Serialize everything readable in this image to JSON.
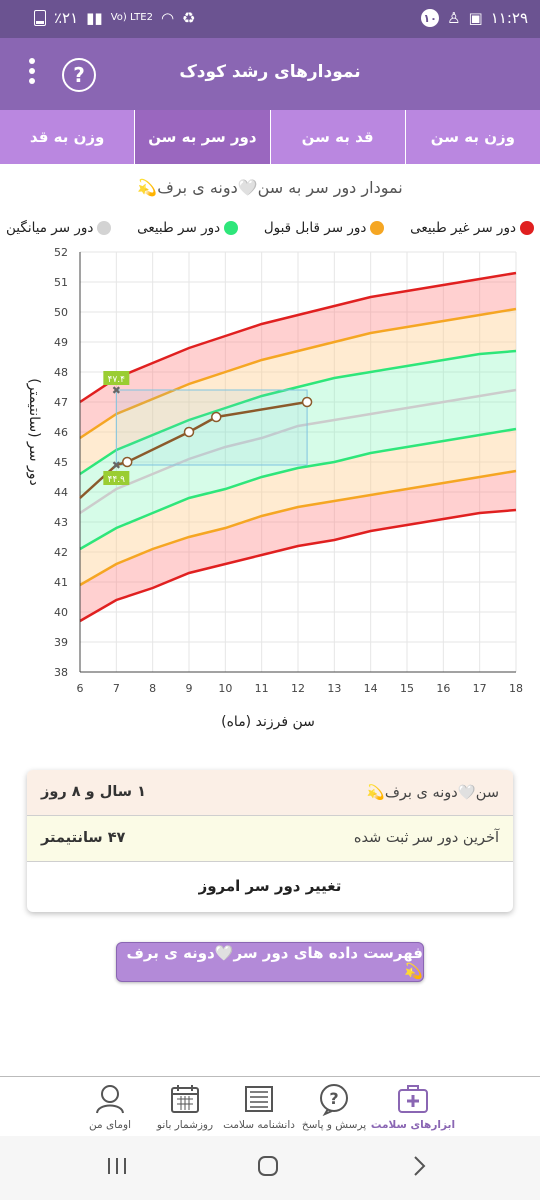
{
  "status_bar": {
    "battery": "٪۲۱",
    "network": "Vo) LTE2",
    "time": "۱۱:۲۹",
    "notif_count": "۱۰"
  },
  "app": {
    "title": "نمودارهای رشد کودک",
    "help_label": "?"
  },
  "tabs": [
    {
      "label": "وزن به سن",
      "active": false
    },
    {
      "label": "قد به سن",
      "active": false
    },
    {
      "label": "دور سر به سن",
      "active": true
    },
    {
      "label": "وزن به قد",
      "active": false
    }
  ],
  "chart_header": {
    "title": "نمودار دور سر به سن🤍دونه ی برف💫"
  },
  "legend": [
    {
      "label": "دور سر غیر طبیعی",
      "color": "#e02020"
    },
    {
      "label": "دور سر قابل قبول",
      "color": "#f5a623"
    },
    {
      "label": "دور سر طبیعی",
      "color": "#2ee67a"
    },
    {
      "label": "دور سر میانگین",
      "color": "#d3d3d3"
    }
  ],
  "chart_data": {
    "type": "line",
    "xlabel": "سن فرزند (ماه)",
    "ylabel": "دور سر (سانتیمتر)",
    "xlim": [
      6,
      18
    ],
    "ylim": [
      38,
      52
    ],
    "x_ticks": [
      "6",
      "7",
      "8",
      "9",
      "10",
      "11",
      "12",
      "13",
      "14",
      "15",
      "16",
      "17",
      "18"
    ],
    "y_ticks": [
      "38",
      "39",
      "40",
      "41",
      "42",
      "43",
      "44",
      "45",
      "46",
      "47",
      "48",
      "49",
      "50",
      "51",
      "52"
    ],
    "reference_x": [
      6,
      7,
      8,
      9,
      10,
      11,
      12,
      13,
      14,
      15,
      16,
      17,
      18
    ],
    "reference_curves": [
      {
        "name": "abnormal_high",
        "color": "#e02020",
        "values": [
          47.0,
          47.8,
          48.3,
          48.8,
          49.2,
          49.6,
          49.9,
          50.2,
          50.5,
          50.7,
          50.9,
          51.1,
          51.3
        ]
      },
      {
        "name": "acceptable_high",
        "color": "#f5a623",
        "values": [
          45.8,
          46.6,
          47.1,
          47.6,
          48.0,
          48.4,
          48.7,
          49.0,
          49.3,
          49.5,
          49.7,
          49.9,
          50.1
        ]
      },
      {
        "name": "normal_high",
        "color": "#2ee67a",
        "values": [
          44.6,
          45.4,
          45.9,
          46.4,
          46.8,
          47.2,
          47.5,
          47.8,
          48.0,
          48.2,
          48.4,
          48.6,
          48.7
        ]
      },
      {
        "name": "median",
        "color": "#cccccc",
        "values": [
          43.3,
          44.1,
          44.6,
          45.1,
          45.5,
          45.8,
          46.2,
          46.4,
          46.6,
          46.8,
          47.0,
          47.2,
          47.4
        ]
      },
      {
        "name": "normal_low",
        "color": "#2ee67a",
        "values": [
          42.1,
          42.8,
          43.3,
          43.8,
          44.1,
          44.5,
          44.8,
          45.0,
          45.3,
          45.5,
          45.7,
          45.9,
          46.1
        ]
      },
      {
        "name": "acceptable_low",
        "color": "#f5a623",
        "values": [
          40.9,
          41.6,
          42.1,
          42.5,
          42.8,
          43.2,
          43.5,
          43.7,
          43.9,
          44.1,
          44.3,
          44.5,
          44.7
        ]
      },
      {
        "name": "abnormal_low",
        "color": "#e02020",
        "values": [
          39.7,
          40.4,
          40.8,
          41.3,
          41.6,
          41.9,
          42.2,
          42.4,
          42.7,
          42.9,
          43.1,
          43.3,
          43.4
        ]
      }
    ],
    "child_series": {
      "color": "#8b5a2b",
      "points": [
        {
          "x": 6.0,
          "y": 43.8
        },
        {
          "x": 7.0,
          "y": 44.9
        },
        {
          "x": 7.3,
          "y": 45.0
        },
        {
          "x": 9.0,
          "y": 46.0
        },
        {
          "x": 9.75,
          "y": 46.5
        },
        {
          "x": 12.25,
          "y": 47.0
        }
      ],
      "open_marker_from_index": 2
    },
    "markers": [
      {
        "x": 7.0,
        "y": 47.4,
        "label": "۴۷.۴"
      },
      {
        "x": 7.0,
        "y": 44.9,
        "label": "۴۴.۹"
      }
    ],
    "highlight_box": {
      "x0": 7.0,
      "x1": 12.25,
      "y0": 44.9,
      "y1": 47.4
    }
  },
  "info_card": {
    "age_label": "سن🤍دونه ی برف💫",
    "age_value": "۱ سال و ۸ روز",
    "last_label": "آخرین دور سر ثبت شده",
    "last_value": "۴۷ سانتیمتر",
    "action": "تغییر دور سر امروز"
  },
  "list_button": "فهرست داده های دور سر🤍دونه ی برف💫",
  "bottom_nav": [
    {
      "label": "ابزارهای سلامت",
      "icon": "medical-kit-icon",
      "active": true
    },
    {
      "label": "پرسش و پاسخ",
      "icon": "question-bubble-icon",
      "active": false
    },
    {
      "label": "دانشنامه سلامت",
      "icon": "newspaper-icon",
      "active": false
    },
    {
      "label": "روزشمار بانو",
      "icon": "calendar-icon",
      "active": false
    },
    {
      "label": "اومای من",
      "icon": "user-icon",
      "active": false
    }
  ]
}
